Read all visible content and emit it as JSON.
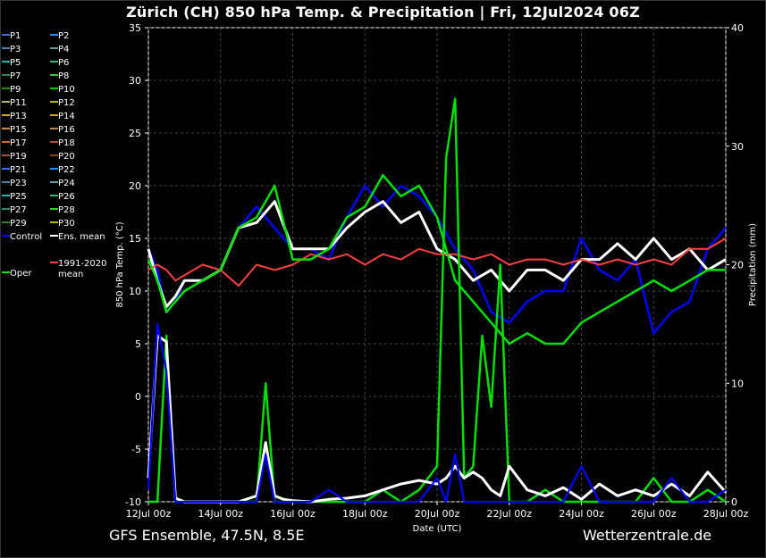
{
  "title": "Zürich  (CH)  850 hPa Temp. & Precipitation | Fri, 12Jul2024 06Z",
  "footer_left": "GFS Ensemble, 47.5N, 8.5E",
  "footer_right": "Wetterzentrale.de",
  "chart_data": {
    "type": "line",
    "xlabel": "Date (UTC)",
    "ylabel": "850 hPa Temp. (°C)",
    "y2label": "Precipitation (mm)",
    "ylim": [
      -10,
      35
    ],
    "y2lim": [
      0,
      40
    ],
    "yticks": [
      -10,
      -5,
      0,
      5,
      10,
      15,
      20,
      25,
      30,
      35
    ],
    "y2ticks": [
      0,
      10,
      20,
      30,
      40
    ],
    "x_ticks": [
      "12Jul 00z",
      "14Jul 00z",
      "16Jul 00z",
      "18Jul 00z",
      "20Jul 00z",
      "22Jul 00z",
      "24Jul 00z",
      "26Jul 00z",
      "28Jul 00z"
    ],
    "x_hours": [
      0,
      384
    ],
    "grid": true,
    "legend": [
      {
        "label": "P1",
        "color": "#4169e1"
      },
      {
        "label": "P2",
        "color": "#1e90ff"
      },
      {
        "label": "P3",
        "color": "#4682b4"
      },
      {
        "label": "P4",
        "color": "#5f9ea0"
      },
      {
        "label": "P5",
        "color": "#20b2aa"
      },
      {
        "label": "P6",
        "color": "#3cb371"
      },
      {
        "label": "P7",
        "color": "#2e8b57"
      },
      {
        "label": "P8",
        "color": "#32cd32"
      },
      {
        "label": "P9",
        "color": "#228b22"
      },
      {
        "label": "P10",
        "color": "#00c800"
      },
      {
        "label": "P11",
        "color": "#bdb76b"
      },
      {
        "label": "P12",
        "color": "#b8b800"
      },
      {
        "label": "P13",
        "color": "#daa520"
      },
      {
        "label": "P14",
        "color": "#d4a017"
      },
      {
        "label": "P15",
        "color": "#cd853f"
      },
      {
        "label": "P16",
        "color": "#c08040"
      },
      {
        "label": "P17",
        "color": "#d2691e"
      },
      {
        "label": "P18",
        "color": "#b8502e"
      },
      {
        "label": "P19",
        "color": "#a0522d"
      },
      {
        "label": "P20",
        "color": "#8b4513"
      },
      {
        "label": "P21",
        "color": "#4169e1"
      },
      {
        "label": "P22",
        "color": "#1e90ff"
      },
      {
        "label": "P23",
        "color": "#4682b4"
      },
      {
        "label": "P24",
        "color": "#5f9ea0"
      },
      {
        "label": "P25",
        "color": "#20b2aa"
      },
      {
        "label": "P26",
        "color": "#3cb371"
      },
      {
        "label": "P27",
        "color": "#2e8b57"
      },
      {
        "label": "P28",
        "color": "#32cd32"
      },
      {
        "label": "P29",
        "color": "#228b22"
      },
      {
        "label": "P30",
        "color": "#b8b800"
      },
      {
        "label": "Control",
        "color": "#0000ff"
      },
      {
        "label": "Ens. mean",
        "color": "#ffffff"
      },
      {
        "label": "1991-2020",
        "label2": "mean",
        "color": "#ff4040"
      },
      {
        "label": "Oper",
        "color": "#00e000"
      }
    ],
    "series": [
      {
        "name": "Control",
        "color": "#0000ff",
        "axis": "temp",
        "x": [
          0,
          6,
          12,
          18,
          24,
          36,
          48,
          60,
          72,
          84,
          96,
          108,
          120,
          132,
          144,
          156,
          168,
          180,
          192,
          204,
          216,
          228,
          240,
          252,
          264,
          276,
          288,
          300,
          312,
          324,
          336,
          348,
          360,
          372,
          384
        ],
        "values": [
          14,
          12,
          8,
          9,
          11,
          11,
          12,
          16,
          18,
          16,
          14,
          14,
          13,
          17,
          20,
          18,
          20,
          19,
          17,
          14,
          12,
          8,
          7,
          9,
          10,
          10,
          15,
          12,
          11,
          13,
          6,
          8,
          9,
          14,
          16
        ]
      },
      {
        "name": "Ens. mean",
        "color": "#ffffff",
        "axis": "temp",
        "x": [
          0,
          6,
          12,
          18,
          24,
          36,
          48,
          60,
          72,
          84,
          96,
          108,
          120,
          132,
          144,
          156,
          168,
          180,
          192,
          204,
          216,
          228,
          240,
          252,
          264,
          276,
          288,
          300,
          312,
          324,
          336,
          348,
          360,
          372,
          384
        ],
        "values": [
          14,
          11,
          8.5,
          9.5,
          11,
          11,
          12,
          16,
          16.5,
          18.5,
          14,
          14,
          14,
          16,
          17.5,
          18.5,
          16.5,
          17.5,
          14,
          13,
          11,
          12,
          10,
          12,
          12,
          11,
          13,
          13,
          14.5,
          13,
          15,
          13,
          14,
          12,
          13
        ]
      },
      {
        "name": "1991-2020",
        "color": "#ff4040",
        "axis": "temp",
        "x": [
          0,
          6,
          12,
          18,
          24,
          36,
          48,
          60,
          72,
          84,
          96,
          108,
          120,
          132,
          144,
          156,
          168,
          180,
          192,
          204,
          216,
          228,
          240,
          252,
          264,
          276,
          288,
          300,
          312,
          324,
          336,
          348,
          360,
          372,
          384
        ],
        "values": [
          12,
          12.5,
          12,
          11,
          11.5,
          12.5,
          12,
          10.5,
          12.5,
          12,
          12.5,
          13.5,
          13,
          13.5,
          12.5,
          13.5,
          13,
          14,
          13.5,
          13.5,
          13,
          13.5,
          12.5,
          13,
          13,
          12.5,
          13,
          12.5,
          13,
          12.5,
          13,
          12.5,
          14,
          14,
          15
        ]
      },
      {
        "name": "Oper",
        "color": "#00e000",
        "axis": "temp",
        "x": [
          0,
          6,
          12,
          18,
          24,
          36,
          48,
          60,
          72,
          84,
          96,
          108,
          120,
          132,
          144,
          156,
          168,
          180,
          192,
          204,
          216,
          228,
          240,
          252,
          264,
          276,
          288,
          300,
          312,
          324,
          336,
          348,
          360,
          372,
          384
        ],
        "values": [
          13,
          11,
          8,
          9,
          10,
          11,
          12,
          16,
          17,
          20,
          13,
          13,
          14,
          17,
          18,
          21,
          19,
          20,
          17,
          11,
          9,
          7,
          5,
          6,
          5,
          5,
          7,
          8,
          9,
          10,
          11,
          10,
          11,
          12,
          12
        ]
      },
      {
        "name": "Oper precipitation",
        "color": "#00e000",
        "axis": "precip",
        "x": [
          0,
          6,
          12,
          18,
          24,
          36,
          48,
          60,
          72,
          78,
          84,
          90,
          96,
          108,
          120,
          132,
          144,
          156,
          168,
          180,
          192,
          198,
          204,
          210,
          216,
          222,
          228,
          234,
          240,
          252,
          264,
          276,
          288,
          300,
          312,
          324,
          336,
          348,
          360,
          372,
          384
        ],
        "values": [
          0,
          0,
          14,
          0,
          0,
          0,
          0,
          0,
          0,
          10,
          0,
          0,
          0,
          0,
          0,
          0,
          0,
          1,
          0,
          1,
          3,
          29,
          34,
          2,
          3,
          14,
          8,
          20,
          0,
          0,
          1,
          0,
          0,
          0,
          0,
          0,
          2,
          0,
          0,
          1,
          0
        ]
      },
      {
        "name": "Ens. mean precipitation",
        "color": "#ffffff",
        "axis": "precip",
        "x": [
          0,
          6,
          12,
          18,
          24,
          36,
          48,
          60,
          72,
          78,
          84,
          90,
          96,
          108,
          120,
          132,
          144,
          156,
          168,
          180,
          192,
          198,
          204,
          210,
          216,
          222,
          228,
          234,
          240,
          252,
          264,
          276,
          288,
          300,
          312,
          324,
          336,
          348,
          360,
          372,
          384
        ],
        "values": [
          2,
          14,
          13.5,
          0.3,
          0,
          0,
          0,
          0,
          0.5,
          5,
          0.5,
          0.2,
          0.1,
          0,
          0.2,
          0.3,
          0.5,
          1,
          1.5,
          1.8,
          1.5,
          2,
          3,
          2,
          2.5,
          2,
          1,
          0.5,
          3,
          1,
          0.5,
          1.2,
          0.2,
          1.5,
          0.5,
          1,
          0.5,
          1.5,
          0.5,
          2.5,
          0.8
        ]
      },
      {
        "name": "Control precipitation",
        "color": "#0000ff",
        "axis": "precip",
        "x": [
          0,
          6,
          12,
          18,
          24,
          36,
          48,
          60,
          72,
          78,
          84,
          90,
          96,
          108,
          120,
          132,
          144,
          156,
          168,
          180,
          192,
          198,
          204,
          210,
          216,
          222,
          228,
          234,
          240,
          252,
          264,
          276,
          288,
          300,
          312,
          324,
          336,
          348,
          360,
          372,
          384
        ],
        "values": [
          1,
          15,
          11,
          0,
          0,
          0,
          0,
          0,
          0,
          4,
          0,
          0,
          0,
          0,
          1,
          0,
          0,
          0,
          0,
          0,
          2,
          0,
          4,
          0,
          0,
          0,
          0,
          0,
          0,
          0,
          0,
          0,
          3,
          0,
          0,
          0,
          0,
          2,
          0,
          0,
          1
        ]
      }
    ]
  }
}
